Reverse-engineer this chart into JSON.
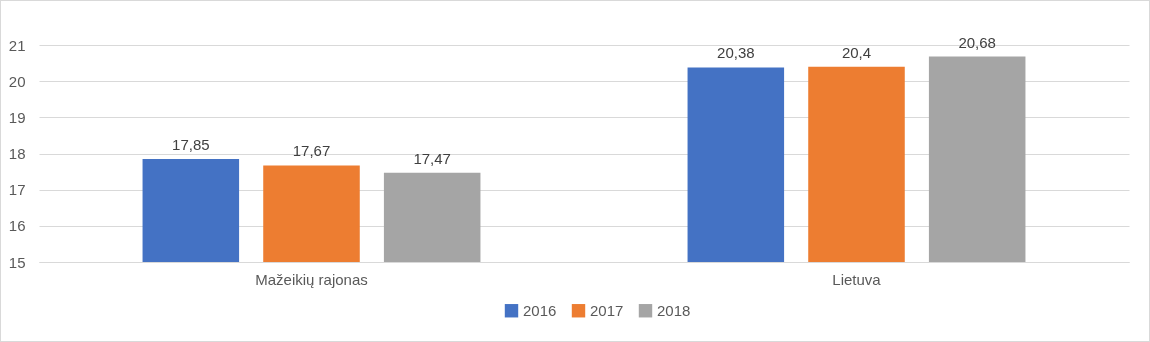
{
  "chart_data": {
    "type": "bar",
    "categories": [
      "Mažeikių rajonas",
      "Lietuva"
    ],
    "ylim": [
      15,
      21
    ],
    "yticks": [
      15,
      16,
      17,
      18,
      19,
      20,
      21
    ],
    "grid": "y",
    "legend": "bottom",
    "series": [
      {
        "name": "2016",
        "color": "#4472c4",
        "values": [
          17.85,
          20.38
        ],
        "value_labels": [
          "17,85",
          "20,38"
        ]
      },
      {
        "name": "2017",
        "color": "#ed7d31",
        "values": [
          17.67,
          20.4
        ],
        "value_labels": [
          "17,67",
          "20,4"
        ]
      },
      {
        "name": "2018",
        "color": "#a5a5a5",
        "values": [
          17.47,
          20.68
        ],
        "value_labels": [
          "17,47",
          "20,68"
        ]
      }
    ]
  }
}
